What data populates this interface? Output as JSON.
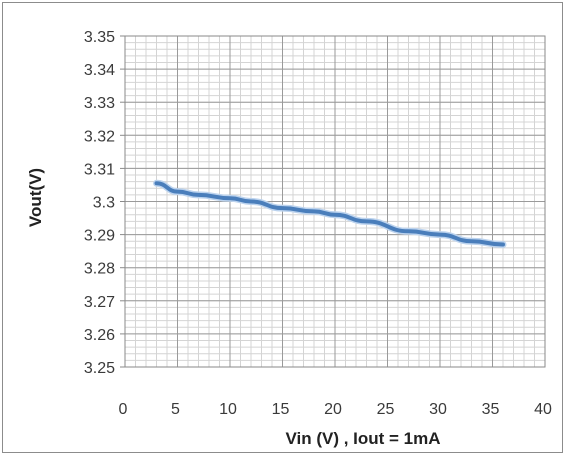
{
  "chart_data": {
    "type": "line",
    "title": "",
    "xlabel": "Vin (V) , Iout = 1mA",
    "ylabel": "Vout(V)",
    "xlim": [
      0,
      40
    ],
    "ylim": [
      3.25,
      3.35
    ],
    "x_ticks": [
      "0",
      "5",
      "10",
      "15",
      "20",
      "25",
      "30",
      "35",
      "40"
    ],
    "y_ticks": [
      "3.25",
      "3.26",
      "3.27",
      "3.28",
      "3.29",
      "3.3",
      "3.31",
      "3.32",
      "3.33",
      "3.34",
      "3.35"
    ],
    "x_tick_values": [
      0,
      5,
      10,
      15,
      20,
      25,
      30,
      35,
      40
    ],
    "y_tick_values": [
      3.25,
      3.26,
      3.27,
      3.28,
      3.29,
      3.3,
      3.31,
      3.32,
      3.33,
      3.34,
      3.35
    ],
    "grid": true,
    "minor_grid": true,
    "legend": "none",
    "series": [
      {
        "color": "#4a7ebb",
        "x": [
          3,
          5,
          7,
          10,
          12,
          15,
          18,
          20,
          23,
          27,
          30,
          33,
          36
        ],
        "y": [
          3.3055,
          3.303,
          3.302,
          3.301,
          3.3,
          3.298,
          3.297,
          3.296,
          3.294,
          3.291,
          3.29,
          3.288,
          3.287
        ]
      }
    ]
  }
}
